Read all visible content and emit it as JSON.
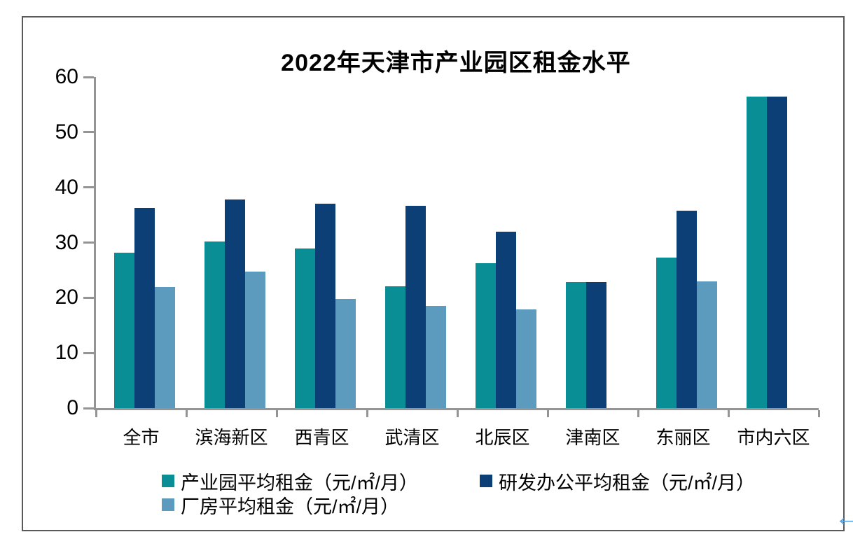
{
  "chart_data": {
    "type": "bar",
    "title": "2022年天津市产业园区租金水平",
    "categories": [
      "全市",
      "滨海新区",
      "西青区",
      "武清区",
      "北辰区",
      "津南区",
      "东丽区",
      "市内六区"
    ],
    "series": [
      {
        "name": "产业园平均租金（元/㎡/月）",
        "color": "#0a8e96",
        "values": [
          28.2,
          30.2,
          28.9,
          22.1,
          26.3,
          22.8,
          27.3,
          56.4
        ]
      },
      {
        "name": "研发办公平均租金（元/㎡/月）",
        "color": "#0b3f76",
        "values": [
          36.3,
          37.8,
          37.0,
          36.6,
          32.0,
          22.8,
          35.8,
          56.4
        ]
      },
      {
        "name": "厂房平均租金（元/㎡/月）",
        "color": "#5c9bbd",
        "values": [
          22.0,
          24.8,
          19.8,
          18.5,
          17.9,
          null,
          23.0,
          null
        ]
      }
    ],
    "yticks": [
      0,
      10,
      20,
      30,
      40,
      50,
      60
    ],
    "ylim": [
      0,
      60
    ],
    "xlabel": "",
    "ylabel": "",
    "grid": false,
    "legend_position": "bottom",
    "axis_color": "#949494",
    "frame_border_color": "#595959"
  },
  "cursor": {
    "glyph": "←",
    "color": "#55a6e8"
  }
}
